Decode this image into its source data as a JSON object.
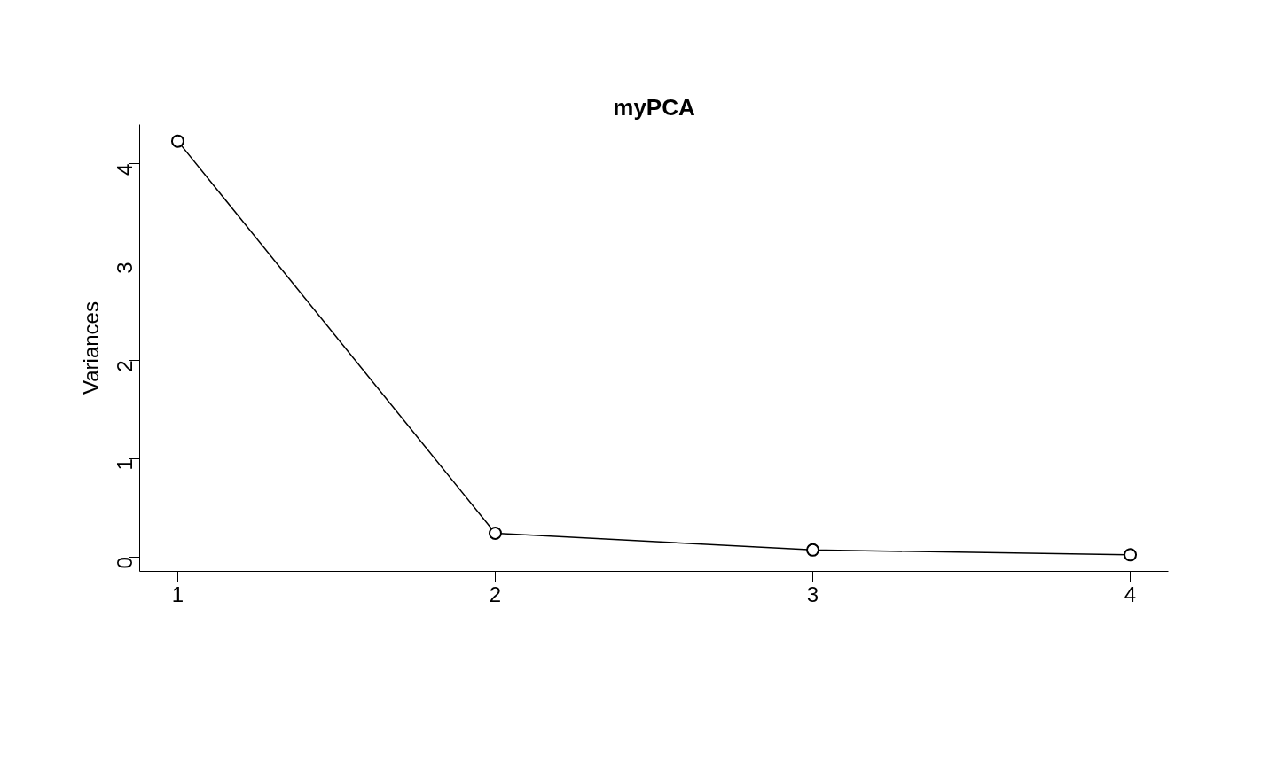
{
  "chart_data": {
    "type": "line",
    "title": "myPCA",
    "ylabel": "Variances",
    "x": [
      1,
      2,
      3,
      4
    ],
    "series": [
      {
        "color": "#000000",
        "values": [
          4.23,
          0.24,
          0.07,
          0.02
        ]
      }
    ],
    "xlim": [
      0.88,
      4.12
    ],
    "ylim": [
      -0.148,
      4.398
    ],
    "xticks": [
      1,
      2,
      3,
      4
    ],
    "yticks": [
      0,
      1,
      2,
      3,
      4
    ],
    "grid": false,
    "marker": "circle",
    "line_style": "solid"
  }
}
